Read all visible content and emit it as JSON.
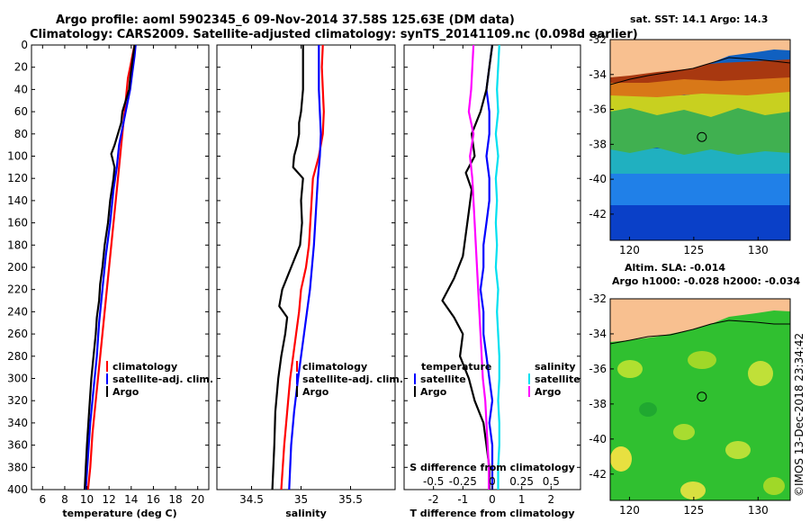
{
  "figure": {
    "title_line1": "Argo profile: aoml 5902345_6 09-Nov-2014 37.58S 125.63E (DM data)",
    "title_line2": "Climatology: CARS2009. Satellite-adjusted climatology: synTS_20141109.nc (0.098d earlier)",
    "copyright": "©IMOS 13-Dec-2018 23:34:42"
  },
  "colors": {
    "red": "#ff0000",
    "blue": "#0000ff",
    "black": "#000000",
    "cyan": "#00e0f0",
    "magenta": "#ff00ff",
    "land": "#f8c090"
  },
  "depth_axis": {
    "ticks": [
      0,
      20,
      40,
      60,
      80,
      100,
      120,
      140,
      160,
      180,
      200,
      220,
      240,
      260,
      280,
      300,
      320,
      340,
      360,
      380,
      400
    ],
    "ylim": [
      0,
      400
    ]
  },
  "chart_data": [
    {
      "type": "line",
      "id": "temperature",
      "xlabel": "temperature (deg C)",
      "xlim": [
        5,
        21
      ],
      "ylim": [
        0,
        400
      ],
      "xticks": [
        6,
        8,
        10,
        12,
        14,
        16,
        18,
        20
      ],
      "legend": {
        "items": [
          {
            "label": "climatology",
            "color": "#ff0000"
          },
          {
            "label": "satellite-adj. clim.",
            "color": "#0000ff"
          },
          {
            "label": "Argo",
            "color": "#000000"
          }
        ]
      },
      "series": [
        {
          "name": "climatology",
          "color": "#ff0000",
          "points": [
            [
              14.3,
              0
            ],
            [
              14.1,
              10
            ],
            [
              13.9,
              20
            ],
            [
              13.7,
              30
            ],
            [
              13.5,
              50
            ],
            [
              13.3,
              70
            ],
            [
              13.1,
              90
            ],
            [
              12.9,
              110
            ],
            [
              12.6,
              140
            ],
            [
              12.3,
              170
            ],
            [
              12.0,
              200
            ],
            [
              11.7,
              230
            ],
            [
              11.4,
              260
            ],
            [
              11.1,
              290
            ],
            [
              10.8,
              320
            ],
            [
              10.5,
              350
            ],
            [
              10.3,
              380
            ],
            [
              10.1,
              400
            ]
          ]
        },
        {
          "name": "satellite-adj. clim.",
          "color": "#0000ff",
          "points": [
            [
              14.4,
              0
            ],
            [
              14.3,
              10
            ],
            [
              14.1,
              25
            ],
            [
              13.9,
              40
            ],
            [
              13.6,
              55
            ],
            [
              13.3,
              70
            ],
            [
              12.9,
              90
            ],
            [
              12.7,
              110
            ],
            [
              12.4,
              130
            ],
            [
              12.1,
              160
            ],
            [
              11.7,
              190
            ],
            [
              11.4,
              220
            ],
            [
              11.1,
              250
            ],
            [
              10.9,
              280
            ],
            [
              10.6,
              310
            ],
            [
              10.3,
              340
            ],
            [
              10.1,
              370
            ],
            [
              9.9,
              400
            ]
          ]
        },
        {
          "name": "Argo",
          "color": "#000000",
          "points": [
            [
              14.3,
              0
            ],
            [
              14.1,
              15
            ],
            [
              13.9,
              30
            ],
            [
              13.8,
              40
            ],
            [
              13.5,
              50
            ],
            [
              13.2,
              60
            ],
            [
              13.1,
              70
            ],
            [
              12.8,
              80
            ],
            [
              12.5,
              90
            ],
            [
              12.2,
              98
            ],
            [
              12.3,
              102
            ],
            [
              12.5,
              110
            ],
            [
              12.4,
              120
            ],
            [
              12.1,
              140
            ],
            [
              11.9,
              160
            ],
            [
              11.6,
              180
            ],
            [
              11.4,
              200
            ],
            [
              11.2,
              215
            ],
            [
              11.1,
              230
            ],
            [
              10.9,
              245
            ],
            [
              10.8,
              260
            ],
            [
              10.6,
              280
            ],
            [
              10.4,
              300
            ],
            [
              10.2,
              330
            ],
            [
              10.0,
              360
            ],
            [
              9.9,
              380
            ],
            [
              9.8,
              400
            ]
          ]
        }
      ]
    },
    {
      "type": "line",
      "id": "salinity",
      "xlabel": "salinity",
      "xlim": [
        34.15,
        35.95
      ],
      "ylim": [
        0,
        400
      ],
      "xticks": [
        34.5,
        35,
        35.5
      ],
      "legend": {
        "items": [
          {
            "label": "climatology",
            "color": "#ff0000"
          },
          {
            "label": "satellite-adj. clim.",
            "color": "#0000ff"
          },
          {
            "label": "Argo",
            "color": "#000000"
          }
        ]
      },
      "series": [
        {
          "name": "climatology",
          "color": "#ff0000",
          "points": [
            [
              35.22,
              0
            ],
            [
              35.21,
              20
            ],
            [
              35.22,
              40
            ],
            [
              35.23,
              60
            ],
            [
              35.22,
              80
            ],
            [
              35.18,
              100
            ],
            [
              35.12,
              120
            ],
            [
              35.1,
              150
            ],
            [
              35.08,
              180
            ],
            [
              35.05,
              200
            ],
            [
              35.0,
              220
            ],
            [
              34.98,
              240
            ],
            [
              34.95,
              260
            ],
            [
              34.92,
              280
            ],
            [
              34.89,
              300
            ],
            [
              34.86,
              330
            ],
            [
              34.83,
              360
            ],
            [
              34.8,
              400
            ]
          ]
        },
        {
          "name": "satellite-adj. clim.",
          "color": "#0000ff",
          "points": [
            [
              35.18,
              0
            ],
            [
              35.18,
              20
            ],
            [
              35.18,
              40
            ],
            [
              35.19,
              60
            ],
            [
              35.2,
              80
            ],
            [
              35.19,
              100
            ],
            [
              35.17,
              120
            ],
            [
              35.15,
              150
            ],
            [
              35.13,
              180
            ],
            [
              35.11,
              200
            ],
            [
              35.09,
              220
            ],
            [
              35.06,
              240
            ],
            [
              35.03,
              260
            ],
            [
              35.0,
              280
            ],
            [
              34.97,
              300
            ],
            [
              34.93,
              330
            ],
            [
              34.9,
              360
            ],
            [
              34.88,
              400
            ]
          ]
        },
        {
          "name": "Argo",
          "color": "#000000",
          "points": [
            [
              35.02,
              0
            ],
            [
              35.02,
              20
            ],
            [
              35.02,
              40
            ],
            [
              35.01,
              50
            ],
            [
              35.0,
              60
            ],
            [
              34.98,
              70
            ],
            [
              34.98,
              80
            ],
            [
              34.96,
              90
            ],
            [
              34.93,
              100
            ],
            [
              34.92,
              110
            ],
            [
              35.02,
              120
            ],
            [
              35.0,
              140
            ],
            [
              35.01,
              160
            ],
            [
              34.99,
              180
            ],
            [
              34.9,
              200
            ],
            [
              34.81,
              220
            ],
            [
              34.78,
              235
            ],
            [
              34.86,
              245
            ],
            [
              34.84,
              260
            ],
            [
              34.8,
              280
            ],
            [
              34.77,
              300
            ],
            [
              34.74,
              330
            ],
            [
              34.73,
              360
            ],
            [
              34.71,
              400
            ]
          ]
        }
      ]
    },
    {
      "type": "line",
      "id": "difference",
      "xlabel": "T difference from climatology",
      "xlabel_top": "S difference from climatology",
      "xlim": [
        -3,
        3
      ],
      "xlim_salinity": [
        -0.75,
        0.75
      ],
      "ylim": [
        0,
        400
      ],
      "xticks": [
        -2,
        -1,
        0,
        1,
        2
      ],
      "xtick_labels_salinity": [
        -0.5,
        -0.25,
        0,
        0.25,
        0.5
      ],
      "legend_temperature": {
        "title": "temperature",
        "items": [
          {
            "label": "satellite",
            "color": "#0000ff"
          },
          {
            "label": "Argo",
            "color": "#000000"
          }
        ]
      },
      "legend_salinity": {
        "title": "salinity",
        "items": [
          {
            "label": "satellite",
            "color": "#00e0f0"
          },
          {
            "label": "Argo",
            "color": "#ff00ff"
          }
        ]
      },
      "series": [
        {
          "name": "temperature satellite",
          "color": "#0000ff",
          "points": [
            [
              0.0,
              0
            ],
            [
              -0.1,
              20
            ],
            [
              -0.2,
              40
            ],
            [
              -0.1,
              60
            ],
            [
              -0.1,
              80
            ],
            [
              -0.2,
              100
            ],
            [
              -0.1,
              120
            ],
            [
              -0.1,
              140
            ],
            [
              -0.2,
              160
            ],
            [
              -0.3,
              180
            ],
            [
              -0.3,
              200
            ],
            [
              -0.4,
              220
            ],
            [
              -0.3,
              240
            ],
            [
              -0.3,
              260
            ],
            [
              -0.2,
              280
            ],
            [
              -0.1,
              300
            ],
            [
              0.0,
              320
            ],
            [
              -0.1,
              340
            ],
            [
              0.0,
              360
            ],
            [
              0.0,
              380
            ],
            [
              0.0,
              400
            ]
          ]
        },
        {
          "name": "temperature Argo",
          "color": "#000000",
          "points": [
            [
              0.0,
              0
            ],
            [
              -0.1,
              20
            ],
            [
              -0.2,
              40
            ],
            [
              -0.4,
              60
            ],
            [
              -0.7,
              80
            ],
            [
              -0.6,
              100
            ],
            [
              -0.9,
              115
            ],
            [
              -0.7,
              130
            ],
            [
              -0.8,
              150
            ],
            [
              -0.9,
              170
            ],
            [
              -1.0,
              190
            ],
            [
              -1.3,
              210
            ],
            [
              -1.7,
              230
            ],
            [
              -1.3,
              245
            ],
            [
              -1.0,
              260
            ],
            [
              -1.1,
              280
            ],
            [
              -0.8,
              300
            ],
            [
              -0.6,
              320
            ],
            [
              -0.3,
              340
            ],
            [
              -0.2,
              360
            ],
            [
              -0.1,
              380
            ],
            [
              -0.1,
              400
            ]
          ]
        },
        {
          "name": "salinity satellite",
          "color": "#00e0f0",
          "points": [
            [
              0.06,
              0
            ],
            [
              0.05,
              20
            ],
            [
              0.04,
              40
            ],
            [
              0.05,
              60
            ],
            [
              0.03,
              80
            ],
            [
              0.05,
              100
            ],
            [
              0.03,
              120
            ],
            [
              0.04,
              140
            ],
            [
              0.03,
              160
            ],
            [
              0.04,
              180
            ],
            [
              0.03,
              200
            ],
            [
              0.05,
              220
            ],
            [
              0.04,
              240
            ],
            [
              0.05,
              260
            ],
            [
              0.06,
              280
            ],
            [
              0.06,
              300
            ],
            [
              0.05,
              320
            ],
            [
              0.06,
              340
            ],
            [
              0.06,
              360
            ],
            [
              0.05,
              380
            ],
            [
              0.05,
              400
            ]
          ]
        },
        {
          "name": "salinity Argo",
          "color": "#ff00ff",
          "points": [
            [
              -0.16,
              0
            ],
            [
              -0.17,
              20
            ],
            [
              -0.18,
              40
            ],
            [
              -0.2,
              60
            ],
            [
              -0.16,
              80
            ],
            [
              -0.19,
              100
            ],
            [
              -0.17,
              120
            ],
            [
              -0.16,
              140
            ],
            [
              -0.15,
              160
            ],
            [
              -0.14,
              180
            ],
            [
              -0.13,
              200
            ],
            [
              -0.12,
              220
            ],
            [
              -0.11,
              240
            ],
            [
              -0.1,
              260
            ],
            [
              -0.09,
              280
            ],
            [
              -0.08,
              300
            ],
            [
              -0.06,
              320
            ],
            [
              -0.05,
              340
            ],
            [
              -0.04,
              360
            ],
            [
              -0.03,
              380
            ],
            [
              -0.03,
              400
            ]
          ]
        }
      ]
    },
    {
      "type": "heatmap",
      "id": "sst_map",
      "title": "sat. SST: 14.1  Argo: 14.3",
      "ylim": [
        -43.5,
        -32
      ],
      "xlim": [
        118.5,
        132.5
      ],
      "yticks": [
        -32,
        -34,
        -36,
        -38,
        -40,
        -42
      ],
      "xticks": [
        120,
        125,
        130
      ],
      "marker": {
        "lon": 125.63,
        "lat": -37.58
      }
    },
    {
      "type": "heatmap",
      "id": "sla_map",
      "title_line1": "Altim. SLA: -0.014",
      "title_line2": "Argo h1000: -0.028 h2000: -0.034",
      "ylim": [
        -43.5,
        -32
      ],
      "xlim": [
        118.5,
        132.5
      ],
      "yticks": [
        -32,
        -34,
        -36,
        -38,
        -40,
        -42
      ],
      "xticks": [
        120,
        125,
        130
      ],
      "marker": {
        "lon": 125.63,
        "lat": -37.58
      }
    }
  ]
}
